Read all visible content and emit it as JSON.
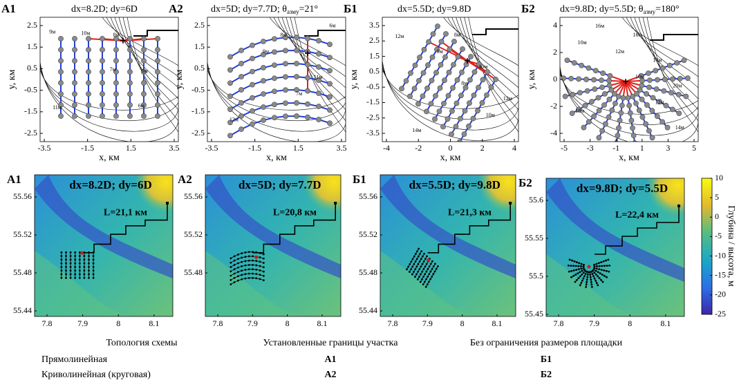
{
  "top_panels": [
    {
      "label": "А1",
      "title": "dx=8.2D; dy=6D",
      "xticks": [
        "-3.5",
        "-1.5",
        "1.5",
        "3.5"
      ],
      "yticks": [
        "2.5",
        "1.5",
        "0.5",
        "-0.5",
        "-1.5",
        "-2.5"
      ],
      "xlabel": "x, км",
      "ylabel": "y, км",
      "contour_labels": [
        "8м",
        "9м",
        "11м",
        "10м",
        "7м",
        "6м",
        "9м"
      ]
    },
    {
      "label": "А2",
      "title": "dx=5D; dy=7.7D; θ",
      "title_sub": "азму",
      "title_end": "=21°",
      "xticks": [
        "-3.5",
        "-1.5",
        "1.5",
        "3.5"
      ],
      "yticks": [
        "2.5",
        "1.5",
        "0.5",
        "-0.5",
        "-1.5",
        "-2.5"
      ],
      "xlabel": "x, км",
      "ylabel": "y, км",
      "contour_labels": [
        "8м",
        "11м",
        "12м",
        "9м",
        "7м",
        "6м"
      ]
    },
    {
      "label": "Б1",
      "title": "dx=5.5D; dy=9.8D",
      "xticks": [
        "-4",
        "-2",
        "0",
        "2",
        "4"
      ],
      "yticks": [
        "3.5",
        "2.5",
        "1.5",
        "0.5",
        "-0.5",
        "-1.5",
        "-2.5",
        "-3.5"
      ],
      "xlabel": "x, км",
      "ylabel": "y, км",
      "contour_labels": [
        "8м",
        "10м",
        "12м",
        "14м",
        "9м",
        "8м",
        "10м",
        "12м"
      ]
    },
    {
      "label": "Б2",
      "title": "dx=9.8D; dy=5.5D; θ",
      "title_sub": "азму",
      "title_end": "=180°",
      "xticks": [
        "-5",
        "-3",
        "-1",
        "1",
        "3",
        "5"
      ],
      "yticks": [
        "4",
        "2",
        "0",
        "-2",
        "-4"
      ],
      "xlabel": "x, км",
      "ylabel": "y, км",
      "contour_labels": [
        "16м",
        "14м",
        "20м",
        "18м",
        "16м",
        "12м",
        "10м",
        "12м",
        "14м",
        "10м"
      ]
    }
  ],
  "bottom_panels": [
    {
      "label": "А1",
      "title": "dx=8.2D; dy=6D",
      "cable_length": "L=21,1 км",
      "xticks": [
        "7.8",
        "7.9",
        "8",
        "8.1"
      ],
      "yticks": [
        "55.56",
        "55.52",
        "55.48",
        "55.44"
      ]
    },
    {
      "label": "А2",
      "title": "dx=5D; dy=7.7D",
      "cable_length": "L=20,8 км",
      "xticks": [
        "7.8",
        "7.9",
        "8",
        "8.1"
      ],
      "yticks": [
        "55.56",
        "55.52",
        "55.48"
      ]
    },
    {
      "label": "Б1",
      "title": "dx=5.5D; dy=9.8D",
      "cable_length": "L=21,3 км",
      "xticks": [
        "7.8",
        "7.9",
        "8",
        "8.1"
      ],
      "yticks": [
        "55.56",
        "55.52",
        "55.48",
        "55.44"
      ]
    },
    {
      "label": "Б2",
      "title": "dx=9.8D; dy=5.5D",
      "cable_length": "L=22,4 км",
      "xticks": [
        "7.8",
        "7.9",
        "8",
        "8.1"
      ],
      "yticks": [
        "55.6",
        "55.55",
        "55.5",
        "55.45"
      ]
    }
  ],
  "colorbar": {
    "ticks": [
      "10",
      "5",
      "0",
      "-5",
      "-10",
      "-15",
      "-20",
      "-25"
    ],
    "label": "Глубина / высота, м"
  },
  "table": {
    "header": [
      "Топология схемы",
      "Установленные границы участка",
      "Без ограничения размеров площадки"
    ],
    "rows": [
      [
        "Прямолинейная",
        "А1",
        "Б1"
      ],
      [
        "Криволинейная (круговая)",
        "А2",
        "Б2"
      ]
    ]
  }
}
